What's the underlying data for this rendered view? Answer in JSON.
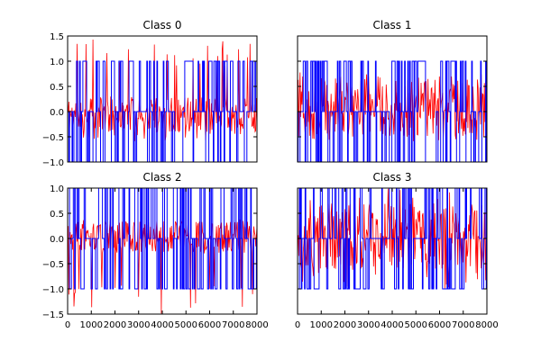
{
  "chart_data": [
    {
      "type": "line",
      "title": "Class 0",
      "ylim": [
        -1.0,
        1.5
      ],
      "yticks": [
        "1.5",
        "1.0",
        "0.5",
        "0.0",
        "−0.5",
        "−1.0"
      ],
      "xlim": [
        0,
        8000
      ],
      "series": [
        {
          "values": []
        },
        {
          "values": []
        }
      ]
    },
    {
      "type": "line",
      "title": "Class 1",
      "ylim": [
        -1.0,
        1.5
      ],
      "yticks": [],
      "xlim": [
        0,
        8000
      ],
      "series": [
        {
          "values": []
        },
        {
          "values": []
        }
      ]
    },
    {
      "type": "line",
      "title": "Class 2",
      "ylim": [
        -1.5,
        1.0
      ],
      "yticks": [
        "1.0",
        "0.5",
        "0.0",
        "−0.5",
        "−1.0",
        "−1.5"
      ],
      "xlim": [
        0,
        8000
      ],
      "xticks": [
        "0",
        "1000",
        "2000",
        "3000",
        "4000",
        "5000",
        "6000",
        "7000",
        "8000"
      ],
      "series": [
        {
          "values": []
        },
        {
          "values": []
        }
      ]
    },
    {
      "type": "line",
      "title": "Class 3",
      "ylim": [
        -1.5,
        1.0
      ],
      "yticks": [],
      "xlim": [
        0,
        8000
      ],
      "xticks": [
        "0",
        "1000",
        "2000",
        "3000",
        "4000",
        "5000",
        "6000",
        "7000",
        "8000"
      ],
      "series": [
        {
          "values": []
        },
        {
          "values": []
        }
      ]
    }
  ],
  "colors": {
    "red_series": "#ff0000",
    "blue_series": "#0000ff"
  }
}
